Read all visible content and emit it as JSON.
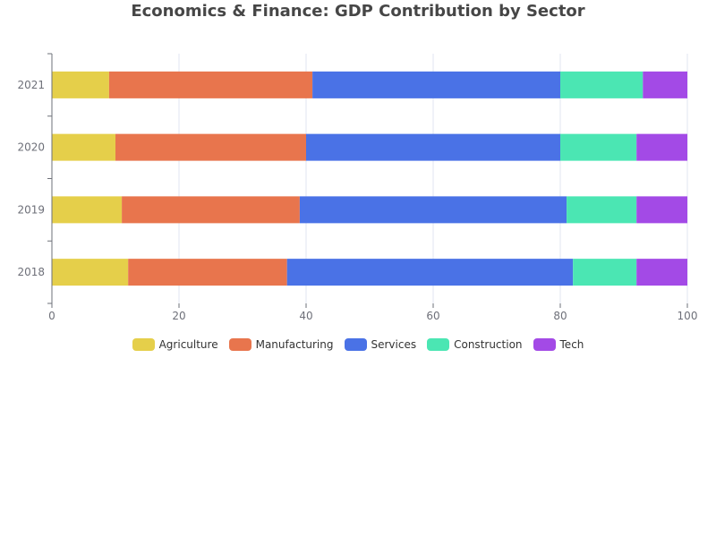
{
  "chart_data": {
    "type": "bar",
    "orientation": "horizontal",
    "stacked": true,
    "title": "Economics & Finance: GDP Contribution by Sector",
    "categories": [
      "2018",
      "2019",
      "2020",
      "2021"
    ],
    "xlim": [
      0,
      100
    ],
    "x_ticks": [
      "0",
      "20",
      "40",
      "60",
      "80",
      "100"
    ],
    "grid": true,
    "legend_position": "bottom-center",
    "series": [
      {
        "name": "Agriculture",
        "color": "#e5cf4a",
        "values": [
          12,
          11,
          10,
          9
        ]
      },
      {
        "name": "Manufacturing",
        "color": "#e8754d",
        "values": [
          25,
          28,
          30,
          32
        ]
      },
      {
        "name": "Services",
        "color": "#4a72e6",
        "values": [
          45,
          42,
          40,
          39
        ]
      },
      {
        "name": "Construction",
        "color": "#4be6b3",
        "values": [
          10,
          11,
          12,
          13
        ]
      },
      {
        "name": "Tech",
        "color": "#a34ae6",
        "values": [
          8,
          8,
          8,
          7
        ]
      }
    ]
  }
}
